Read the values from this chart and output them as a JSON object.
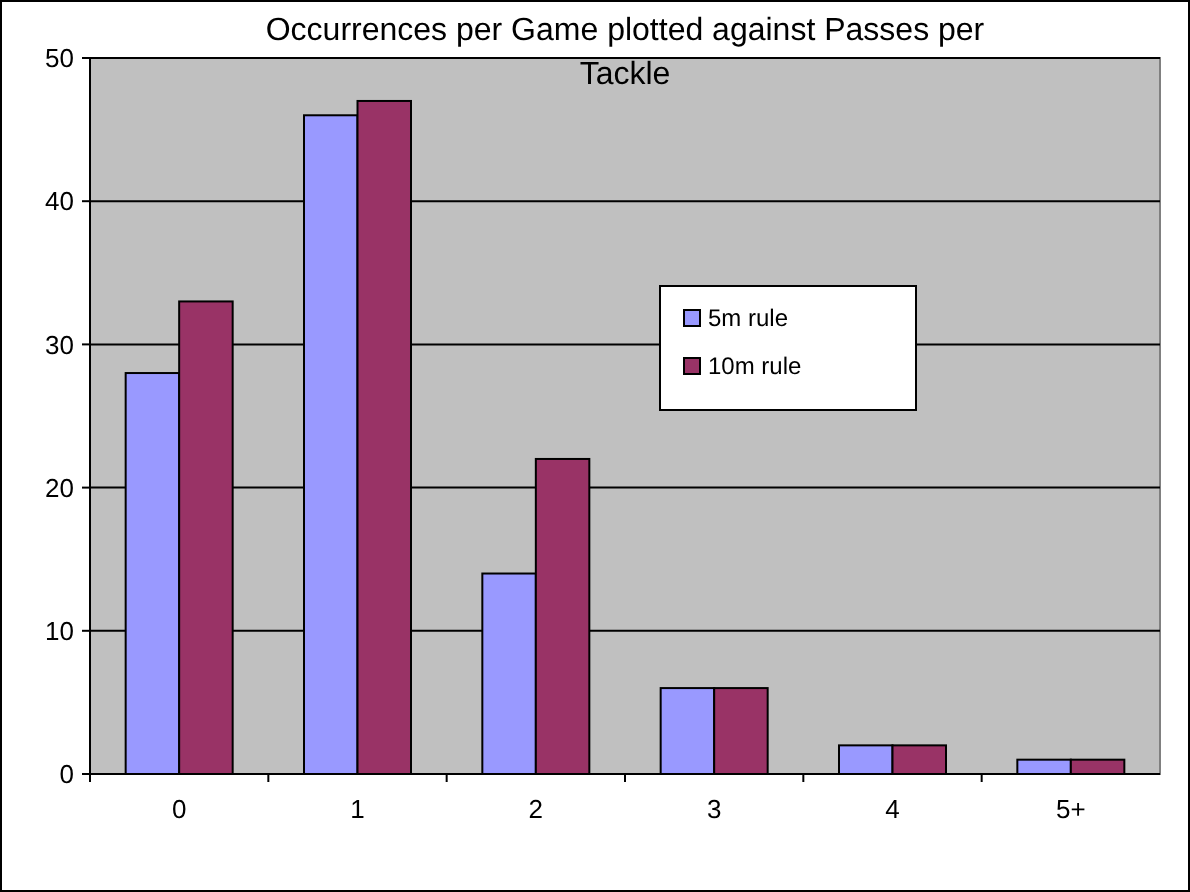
{
  "chart_data": {
    "type": "bar",
    "title": "Occurrences per Game plotted against Passes per Tackle",
    "categories": [
      "0",
      "1",
      "2",
      "3",
      "4",
      "5+"
    ],
    "series": [
      {
        "name": "5m rule",
        "color": "#9999ff",
        "values": [
          28,
          46,
          14,
          6,
          2,
          1
        ]
      },
      {
        "name": "10m rule",
        "color": "#993366",
        "values": [
          33,
          47,
          22,
          6,
          2,
          1
        ]
      }
    ],
    "ylim": [
      0,
      50
    ],
    "yticks": [
      0,
      10,
      20,
      30,
      40,
      50
    ],
    "grid": "y",
    "legend": "right"
  }
}
